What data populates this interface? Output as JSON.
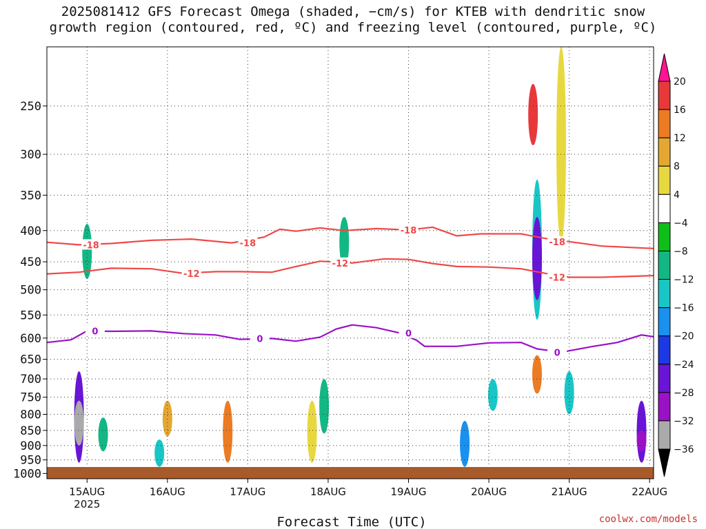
{
  "title_lines": [
    "2025081412 GFS Forecast Omega (shaded, −cm/s) for KTEB with dendritic snow",
    "growth region (contoured, red, ºC) and freezing level (contoured, purple, ºC)"
  ],
  "credit": "coolwx.com/models",
  "chart_data": {
    "type": "heatmap",
    "title": "2025081412 GFS Forecast Omega (shaded, −cm/s) for KTEB with dendritic snow growth region (contoured, red, ºC) and freezing level (contoured, purple, ºC)",
    "xlabel": "Forecast Time (UTC)",
    "ylabel": "",
    "x_tick_labels": [
      "15AUG",
      "16AUG",
      "17AUG",
      "18AUG",
      "19AUG",
      "20AUG",
      "21AUG",
      "22AUG"
    ],
    "x_tick_sublabel": "2025",
    "xlim_days": [
      14.5,
      22.05
    ],
    "y_ticks": [
      250,
      300,
      350,
      400,
      450,
      500,
      550,
      600,
      650,
      700,
      750,
      800,
      850,
      900,
      950,
      1000
    ],
    "ylim": [
      200,
      1020
    ],
    "y_scale": "log",
    "grid": true,
    "colorbar": {
      "labels": [
        "20",
        "16",
        "12",
        "8",
        "4",
        "−4",
        "−8",
        "−12",
        "−16",
        "−20",
        "−24",
        "−28",
        "−32",
        "−36"
      ],
      "colors": [
        "#ff1493",
        "#e8393a",
        "#ec7b22",
        "#e4a732",
        "#e8d840",
        "#ffffff",
        "#0ebf19",
        "#13b784",
        "#19c6c6",
        "#1a90ef",
        "#1b3ae6",
        "#6914d6",
        "#9b11c6",
        "#aaaaaa",
        "#000000"
      ]
    },
    "contours": [
      {
        "label": "-18",
        "color": "#ee4848",
        "points": [
          [
            14.5,
            418
          ],
          [
            14.9,
            422
          ],
          [
            15.3,
            420
          ],
          [
            15.8,
            415
          ],
          [
            16.3,
            413
          ],
          [
            16.8,
            419
          ],
          [
            17.2,
            410
          ],
          [
            17.4,
            398
          ],
          [
            17.6,
            401
          ],
          [
            17.9,
            396
          ],
          [
            18.2,
            400
          ],
          [
            18.6,
            397
          ],
          [
            19.0,
            399
          ],
          [
            19.3,
            395
          ],
          [
            19.6,
            408
          ],
          [
            19.9,
            405
          ],
          [
            20.4,
            405
          ],
          [
            20.7,
            412
          ],
          [
            21.0,
            417
          ],
          [
            21.4,
            424
          ],
          [
            22.05,
            428
          ]
        ]
      },
      {
        "label": "-12",
        "color": "#ee4848",
        "points": [
          [
            14.5,
            471
          ],
          [
            14.9,
            468
          ],
          [
            15.3,
            461
          ],
          [
            15.8,
            462
          ],
          [
            16.2,
            470
          ],
          [
            16.6,
            467
          ],
          [
            16.9,
            467
          ],
          [
            17.3,
            468
          ],
          [
            17.6,
            458
          ],
          [
            17.9,
            449
          ],
          [
            18.3,
            452
          ],
          [
            18.7,
            445
          ],
          [
            19.0,
            446
          ],
          [
            19.3,
            453
          ],
          [
            19.6,
            458
          ],
          [
            20.0,
            459
          ],
          [
            20.4,
            462
          ],
          [
            20.7,
            470
          ],
          [
            21.0,
            477
          ],
          [
            21.4,
            477
          ],
          [
            22.05,
            474
          ]
        ]
      },
      {
        "label": "0",
        "color": "#9a10c8",
        "points": [
          [
            14.5,
            610
          ],
          [
            14.8,
            604
          ],
          [
            15.0,
            584
          ],
          [
            15.3,
            585
          ],
          [
            15.8,
            584
          ],
          [
            16.2,
            590
          ],
          [
            16.6,
            593
          ],
          [
            16.9,
            603
          ],
          [
            17.3,
            601
          ],
          [
            17.6,
            607
          ],
          [
            17.9,
            598
          ],
          [
            18.1,
            580
          ],
          [
            18.3,
            571
          ],
          [
            18.6,
            577
          ],
          [
            18.9,
            589
          ],
          [
            19.1,
            605
          ],
          [
            19.2,
            619
          ],
          [
            19.6,
            619
          ],
          [
            20.0,
            611
          ],
          [
            20.4,
            610
          ],
          [
            20.6,
            625
          ],
          [
            20.9,
            633
          ],
          [
            21.3,
            619
          ],
          [
            21.6,
            610
          ],
          [
            21.9,
            593
          ],
          [
            22.05,
            597
          ]
        ]
      }
    ],
    "shaded_regions": [
      {
        "day": 14.9,
        "p_top": 680,
        "p_bot": 960,
        "value": -24
      },
      {
        "day": 14.9,
        "p_top": 760,
        "p_bot": 900,
        "value": -32
      },
      {
        "day": 15.0,
        "p_top": 390,
        "p_bot": 480,
        "value": -8
      },
      {
        "day": 15.2,
        "p_top": 810,
        "p_bot": 920,
        "value": -8
      },
      {
        "day": 15.9,
        "p_top": 880,
        "p_bot": 975,
        "value": -12
      },
      {
        "day": 16.0,
        "p_top": 760,
        "p_bot": 870,
        "value": 8
      },
      {
        "day": 16.75,
        "p_top": 760,
        "p_bot": 960,
        "value": 12
      },
      {
        "day": 17.8,
        "p_top": 760,
        "p_bot": 960,
        "value": 4
      },
      {
        "day": 17.95,
        "p_top": 700,
        "p_bot": 860,
        "value": -8
      },
      {
        "day": 18.2,
        "p_top": 380,
        "p_bot": 460,
        "value": -8
      },
      {
        "day": 19.7,
        "p_top": 820,
        "p_bot": 975,
        "value": -16
      },
      {
        "day": 20.05,
        "p_top": 700,
        "p_bot": 790,
        "value": -12
      },
      {
        "day": 20.55,
        "p_top": 230,
        "p_bot": 290,
        "value": 16
      },
      {
        "day": 20.6,
        "p_top": 330,
        "p_bot": 560,
        "value": -12
      },
      {
        "day": 20.6,
        "p_top": 380,
        "p_bot": 520,
        "value": -24
      },
      {
        "day": 20.6,
        "p_top": 640,
        "p_bot": 740,
        "value": 12
      },
      {
        "day": 20.9,
        "p_top": 200,
        "p_bot": 420,
        "value": 4
      },
      {
        "day": 21.0,
        "p_top": 680,
        "p_bot": 800,
        "value": -12
      },
      {
        "day": 21.9,
        "p_top": 760,
        "p_bot": 960,
        "value": -24
      },
      {
        "day": 21.9,
        "p_top": 850,
        "p_bot": 920,
        "value": -28
      }
    ]
  }
}
